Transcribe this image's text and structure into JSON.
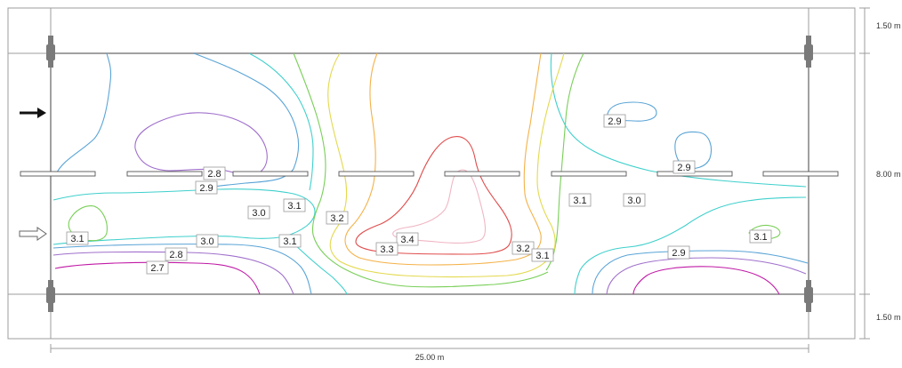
{
  "dimensions": {
    "sidewalk_top": "1.50 m",
    "roadway": "8.00 m",
    "sidewalk_bottom": "1.50 m",
    "length": "25.00 m"
  },
  "colors": {
    "2.7": "#c01aa6",
    "2.8": "#a070cc",
    "2.9": "#5aa4d6",
    "3.0": "#3fd0cc",
    "3.1": "#79cf58",
    "3.2": "#e3d94e",
    "3.3": "#f4b24a",
    "3.4": "#e04d4d",
    "3.5": "#f0b6c4"
  },
  "arrows": [
    {
      "name": "traffic-arrow-solid-icon",
      "style": "filled"
    },
    {
      "name": "traffic-arrow-outline-icon",
      "style": "outline"
    }
  ],
  "contour_labels": [
    {
      "text": "2.8"
    },
    {
      "text": "2.9"
    },
    {
      "text": "3.0"
    },
    {
      "text": "3.1"
    },
    {
      "text": "3.2"
    },
    {
      "text": "3.4"
    },
    {
      "text": "3.3"
    },
    {
      "text": "3.1"
    },
    {
      "text": "3.0"
    },
    {
      "text": "3.1"
    },
    {
      "text": "2.8"
    },
    {
      "text": "2.7"
    },
    {
      "text": "3.2"
    },
    {
      "text": "3.1"
    },
    {
      "text": "3.1"
    },
    {
      "text": "3.0"
    },
    {
      "text": "2.9"
    },
    {
      "text": "2.9"
    },
    {
      "text": "2.9"
    },
    {
      "text": "3.1"
    }
  ]
}
